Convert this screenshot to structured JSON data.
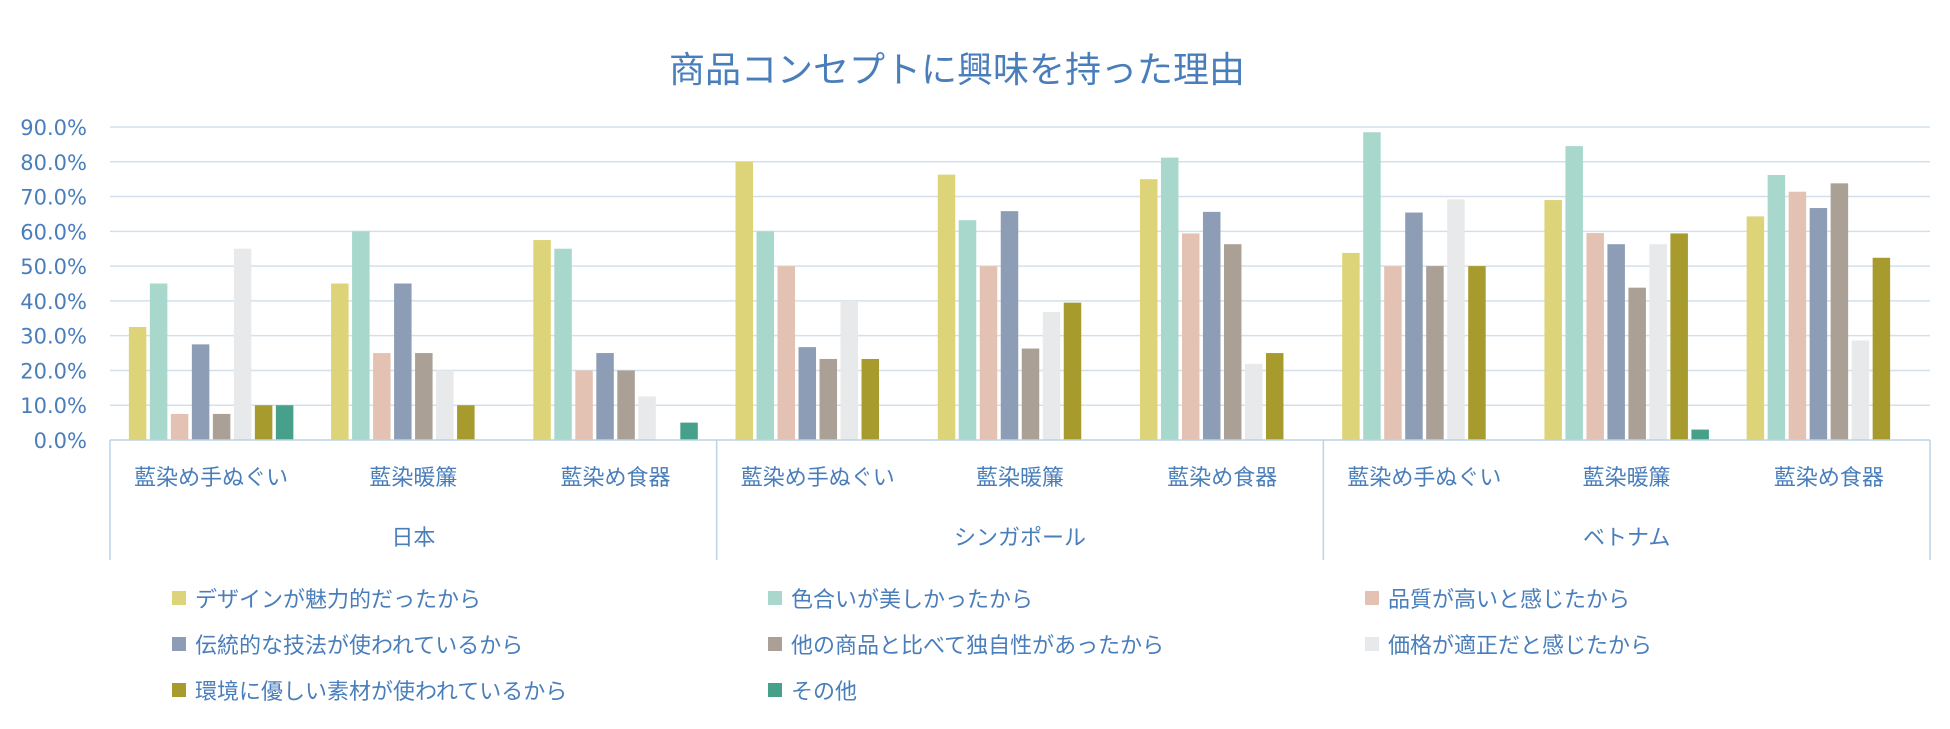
{
  "chart_data": {
    "type": "bar",
    "title": "商品コンセプトに興味を持った理由",
    "ylim": [
      0,
      90
    ],
    "yticks": [
      0,
      10,
      20,
      30,
      40,
      50,
      60,
      70,
      80,
      90
    ],
    "ytick_labels": [
      "0.0%",
      "10.0%",
      "20.0%",
      "30.0%",
      "40.0%",
      "50.0%",
      "60.0%",
      "70.0%",
      "80.0%",
      "90.0%"
    ],
    "groups": [
      {
        "name": "日本",
        "categories": [
          "藍染め手ぬぐい",
          "藍染暖簾",
          "藍染め食器"
        ]
      },
      {
        "name": "シンガポール",
        "categories": [
          "藍染め手ぬぐい",
          "藍染暖簾",
          "藍染め食器"
        ]
      },
      {
        "name": "ベトナム",
        "categories": [
          "藍染め手ぬぐい",
          "藍染暖簾",
          "藍染め食器"
        ]
      }
    ],
    "series": [
      {
        "name": "デザインが魅力的だったから",
        "color": "#ddd47a",
        "values": [
          32.5,
          45,
          57.5,
          80,
          76.3,
          75,
          53.8,
          69,
          64.3
        ]
      },
      {
        "name": "色合いが美しかったから",
        "color": "#a8d8cc",
        "values": [
          45,
          60,
          55,
          60,
          63.2,
          81.2,
          88.5,
          84.5,
          76.2
        ]
      },
      {
        "name": "品質が高いと感じたから",
        "color": "#e3c2b4",
        "values": [
          7.5,
          25,
          20,
          50,
          50,
          59.4,
          50,
          59.5,
          71.4
        ]
      },
      {
        "name": "伝統的な技法が使われているから",
        "color": "#8d9db5",
        "values": [
          27.5,
          45,
          25,
          26.7,
          65.8,
          65.6,
          65.4,
          56.3,
          66.7
        ]
      },
      {
        "name": "他の商品と比べて独自性があったから",
        "color": "#aaa096",
        "values": [
          7.5,
          25,
          20,
          23.3,
          26.3,
          56.3,
          50,
          43.8,
          73.8
        ]
      },
      {
        "name": "価格が適正だと感じたから",
        "color": "#e7e9ea",
        "values": [
          55,
          20,
          12.5,
          40,
          36.8,
          21.9,
          69.2,
          56.3,
          28.6
        ]
      },
      {
        "name": "環境に優しい素材が使われているから",
        "color": "#a89b2e",
        "values": [
          10,
          10,
          0,
          23.3,
          39.5,
          25,
          50,
          59.4,
          52.4
        ]
      },
      {
        "name": "その他",
        "color": "#47a08a",
        "values": [
          10,
          0,
          5,
          0,
          0,
          0,
          0,
          3,
          0
        ]
      }
    ],
    "legend_position": "bottom",
    "grid": true
  }
}
